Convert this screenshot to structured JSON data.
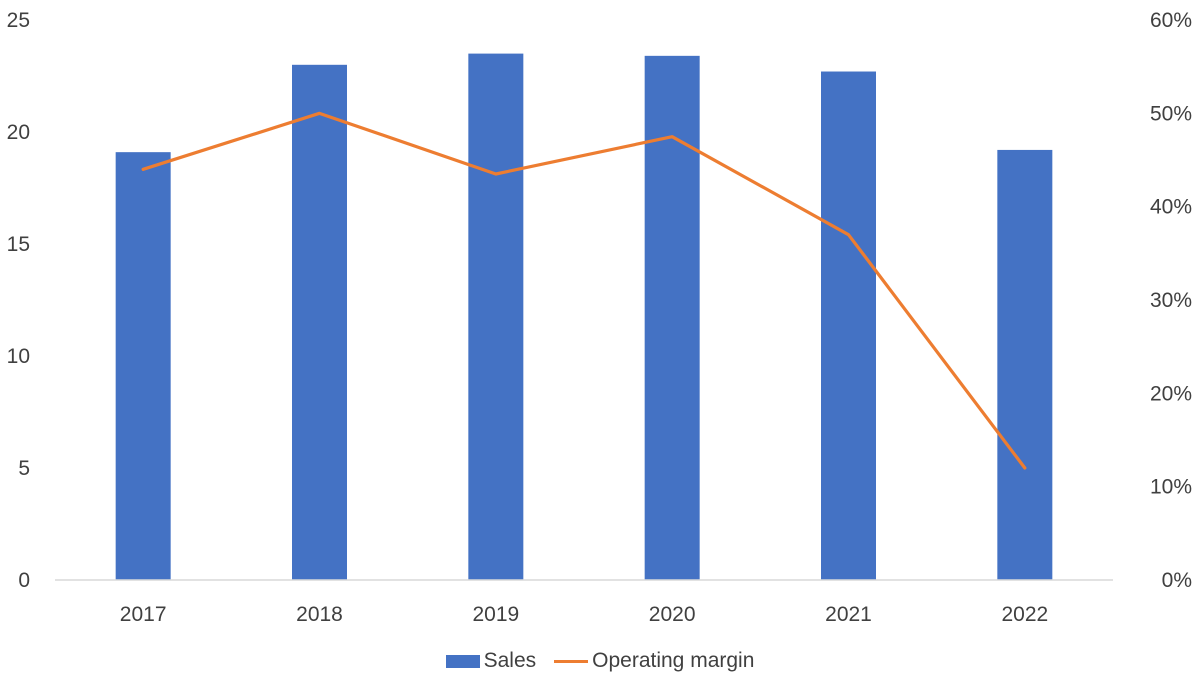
{
  "chart_data": {
    "type": "bar",
    "categories": [
      "2017",
      "2018",
      "2019",
      "2020",
      "2021",
      "2022"
    ],
    "series": [
      {
        "name": "Sales",
        "type": "bar",
        "axis": "left",
        "color": "#4472C4",
        "values": [
          19.1,
          23.0,
          23.5,
          23.4,
          22.7,
          19.2
        ]
      },
      {
        "name": "Operating margin",
        "type": "line",
        "axis": "right",
        "color": "#ED7D31",
        "values": [
          0.44,
          0.5,
          0.435,
          0.475,
          0.37,
          0.12
        ]
      }
    ],
    "y_left": {
      "min": 0,
      "max": 25,
      "ticks": [
        "0",
        "5",
        "10",
        "15",
        "20",
        "25"
      ]
    },
    "y_right": {
      "min": 0,
      "max": 0.6,
      "ticks": [
        "0%",
        "10%",
        "20%",
        "30%",
        "40%",
        "50%",
        "60%"
      ]
    },
    "grid": false,
    "legend_position": "bottom"
  }
}
